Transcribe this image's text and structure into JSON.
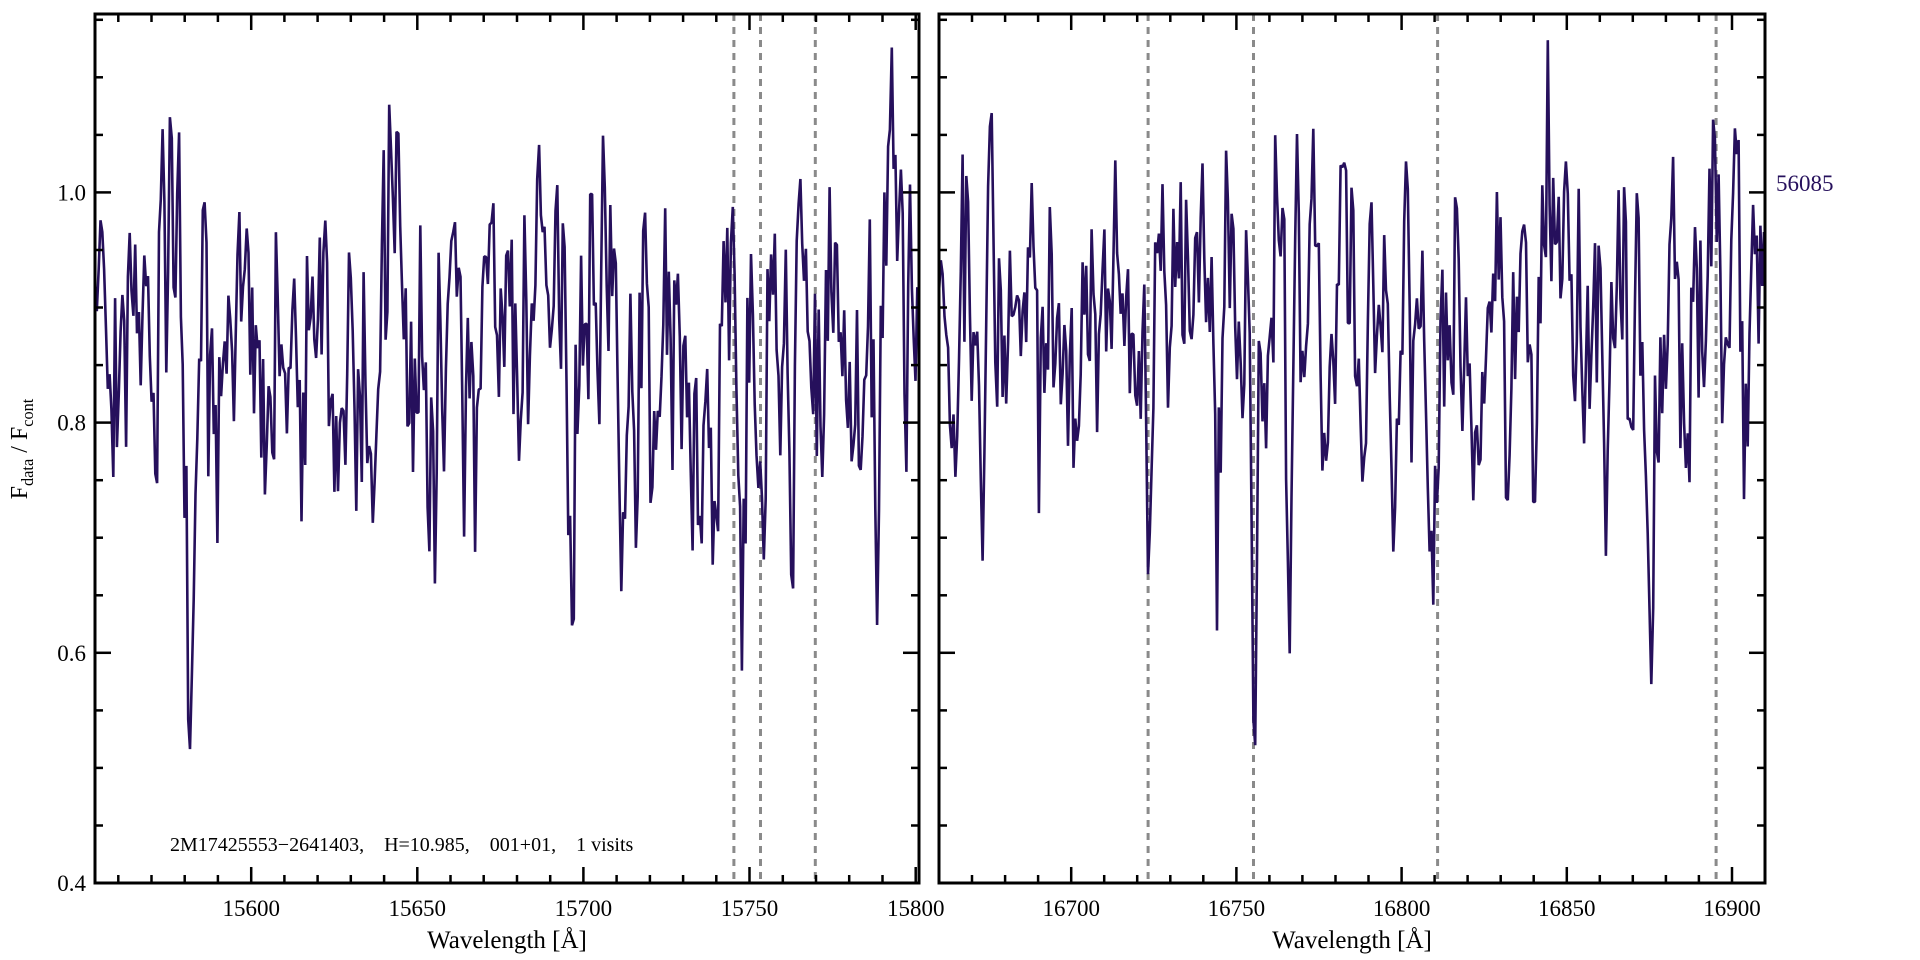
{
  "mjd_label": "56085",
  "annotation": {
    "text": "2M17425553−2641403,    H=10.985,    001+01,    1 visits"
  },
  "chart_data": {
    "type": "line",
    "title": "",
    "xlabel": "Wavelength [Å]",
    "ylabel": {
      "f1": "F",
      "sub1": "data",
      "sep": " / ",
      "f2": "F",
      "sub2": "cont"
    },
    "ylim": [
      0.4,
      1.155
    ],
    "yticks": [
      0.4,
      0.6,
      0.8,
      1.0
    ],
    "ytick_labels": [
      "0.4",
      "0.6",
      "0.8",
      "1.0"
    ],
    "ytick_minor_step": 0.05,
    "xtick_minor_step": 10,
    "grid": false,
    "legend": "none",
    "line_color": "#26105c",
    "dashed_line_color": "#8a8a8a",
    "axis_color": "#000000",
    "continuum": 0.965,
    "sample_step": 0.55,
    "noise": {
      "fast_phi": 0.35,
      "fast_sigma": 0.058,
      "slow_phi": 0.9,
      "slow_sigma": 0.012
    },
    "random_dips": {
      "spacing": [
        1.5,
        7.0
      ],
      "depth": [
        0.03,
        0.24
      ],
      "width": [
        0.5,
        1.5
      ]
    },
    "panels": [
      {
        "xlim": [
          15553,
          15801
        ],
        "xticks": [
          15600,
          15650,
          15700,
          15750,
          15800
        ],
        "dashed_lines": [
          15745.3,
          15753.3,
          15769.8
        ],
        "seed": 20,
        "features": [
          {
            "wavelength": 15560,
            "min_flux": 0.84
          },
          {
            "wavelength": 15570,
            "min_flux": 0.87
          },
          {
            "wavelength": 15582,
            "min_flux": 0.73
          },
          {
            "wavelength": 15590,
            "min_flux": 0.79
          },
          {
            "wavelength": 15605,
            "min_flux": 0.79
          },
          {
            "wavelength": 15618,
            "min_flux": 0.85
          },
          {
            "wavelength": 15637,
            "min_flux": 0.675,
            "width": 0.9
          },
          {
            "wavelength": 15654,
            "min_flux": 0.79
          },
          {
            "wavelength": 15668,
            "min_flux": 0.85
          },
          {
            "wavelength": 15680,
            "min_flux": 0.87
          },
          {
            "wavelength": 15697,
            "min_flux": 0.765
          },
          {
            "wavelength": 15712,
            "min_flux": 0.82
          },
          {
            "wavelength": 15721,
            "min_flux": 0.76
          },
          {
            "wavelength": 15740,
            "min_flux": 0.745
          },
          {
            "wavelength": 15747,
            "min_flux": 0.77
          },
          {
            "wavelength": 15754,
            "min_flux": 0.74
          },
          {
            "wavelength": 15763,
            "min_flux": 0.8
          },
          {
            "wavelength": 15772,
            "min_flux": 0.82
          },
          {
            "wavelength": 15780,
            "min_flux": 0.68,
            "width": 0.9
          },
          {
            "wavelength": 15788,
            "min_flux": 0.7,
            "width": 0.9
          },
          {
            "wavelength": 15797,
            "min_flux": 0.78
          }
        ]
      },
      {
        "xlim": [
          16660,
          16910
        ],
        "xticks": [
          16700,
          16750,
          16800,
          16850,
          16900
        ],
        "dashed_lines": [
          16723.3,
          16755.2,
          16810.9,
          16895.2
        ],
        "seed": 77,
        "features": [
          {
            "wavelength": 16667,
            "min_flux": 0.86
          },
          {
            "wavelength": 16673,
            "min_flux": 0.8
          },
          {
            "wavelength": 16680,
            "min_flux": 0.78
          },
          {
            "wavelength": 16692,
            "min_flux": 0.82
          },
          {
            "wavelength": 16702,
            "min_flux": 0.86
          },
          {
            "wavelength": 16710,
            "min_flux": 0.84
          },
          {
            "wavelength": 16723.3,
            "min_flux": 0.573,
            "width": 0.8
          },
          {
            "wavelength": 16737,
            "min_flux": 0.84
          },
          {
            "wavelength": 16745,
            "min_flux": 0.78
          },
          {
            "wavelength": 16755.2,
            "min_flux": 0.571,
            "width": 0.8
          },
          {
            "wavelength": 16766,
            "min_flux": 0.66,
            "width": 0.9
          },
          {
            "wavelength": 16777,
            "min_flux": 0.83
          },
          {
            "wavelength": 16788,
            "min_flux": 0.79
          },
          {
            "wavelength": 16798,
            "min_flux": 0.85
          },
          {
            "wavelength": 16810,
            "min_flux": 0.77
          },
          {
            "wavelength": 16823,
            "min_flux": 0.82
          },
          {
            "wavelength": 16833,
            "min_flux": 0.85
          },
          {
            "wavelength": 16840,
            "min_flux": 0.78
          },
          {
            "wavelength": 16852,
            "min_flux": 0.83
          },
          {
            "wavelength": 16862,
            "min_flux": 0.81
          },
          {
            "wavelength": 16875,
            "min_flux": 0.77
          },
          {
            "wavelength": 16886,
            "min_flux": 0.82
          },
          {
            "wavelength": 16898,
            "min_flux": 0.84
          }
        ]
      }
    ]
  }
}
